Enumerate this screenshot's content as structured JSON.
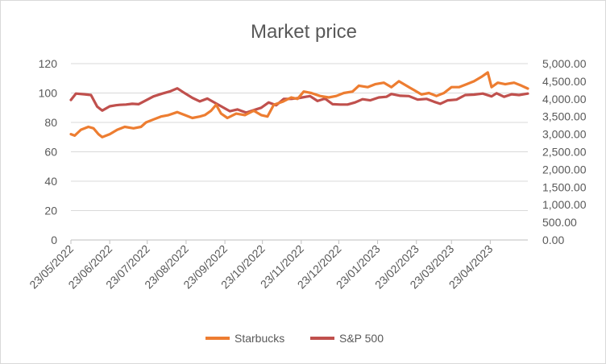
{
  "chart_data": {
    "type": "line",
    "title": "Market price",
    "xlabel": "",
    "ylabel": "",
    "y2label": "",
    "x_ticks": [
      "23/05/2022",
      "23/06/2022",
      "23/07/2022",
      "23/08/2022",
      "23/09/2022",
      "23/10/2022",
      "23/11/2022",
      "23/12/2022",
      "23/01/2023",
      "23/02/2023",
      "23/03/2023",
      "23/04/2023"
    ],
    "xlim": [
      "2022-05-23",
      "2023-05-23"
    ],
    "y_left": {
      "min": 0,
      "max": 120,
      "ticks": [
        "0",
        "20",
        "40",
        "60",
        "80",
        "100",
        "120"
      ]
    },
    "y_right": {
      "min": 0,
      "max": 5000,
      "ticks": [
        "0.00",
        "500.00",
        "1,000.00",
        "1,500.00",
        "2,000.00",
        "2,500.00",
        "3,000.00",
        "3,500.00",
        "4,000.00",
        "4,500.00",
        "5,000.00"
      ]
    },
    "grid": true,
    "legend_position": "bottom",
    "series": [
      {
        "name": "Starbucks",
        "axis": "left",
        "color": "#ed7d31",
        "points": [
          [
            "2022-05-23",
            72
          ],
          [
            "2022-05-26",
            71
          ],
          [
            "2022-05-31",
            75
          ],
          [
            "2022-06-06",
            77
          ],
          [
            "2022-06-10",
            76
          ],
          [
            "2022-06-14",
            72
          ],
          [
            "2022-06-17",
            70
          ],
          [
            "2022-06-23",
            72
          ],
          [
            "2022-06-29",
            75
          ],
          [
            "2022-07-05",
            77
          ],
          [
            "2022-07-12",
            76
          ],
          [
            "2022-07-18",
            77
          ],
          [
            "2022-07-22",
            80
          ],
          [
            "2022-07-28",
            82
          ],
          [
            "2022-08-03",
            84
          ],
          [
            "2022-08-09",
            85
          ],
          [
            "2022-08-16",
            87
          ],
          [
            "2022-08-22",
            85
          ],
          [
            "2022-08-28",
            83
          ],
          [
            "2022-09-03",
            84
          ],
          [
            "2022-09-07",
            85
          ],
          [
            "2022-09-12",
            88
          ],
          [
            "2022-09-16",
            92
          ],
          [
            "2022-09-20",
            86
          ],
          [
            "2022-09-25",
            83
          ],
          [
            "2022-10-02",
            86
          ],
          [
            "2022-10-09",
            85
          ],
          [
            "2022-10-16",
            88
          ],
          [
            "2022-10-22",
            85
          ],
          [
            "2022-10-27",
            84
          ],
          [
            "2022-11-01",
            92
          ],
          [
            "2022-11-08",
            94
          ],
          [
            "2022-11-15",
            97
          ],
          [
            "2022-11-20",
            96
          ],
          [
            "2022-11-25",
            101
          ],
          [
            "2022-12-01",
            100
          ],
          [
            "2022-12-08",
            98
          ],
          [
            "2022-12-15",
            97
          ],
          [
            "2022-12-21",
            98
          ],
          [
            "2022-12-27",
            100
          ],
          [
            "2023-01-03",
            101
          ],
          [
            "2023-01-08",
            105
          ],
          [
            "2023-01-15",
            104
          ],
          [
            "2023-01-21",
            106
          ],
          [
            "2023-01-28",
            107
          ],
          [
            "2023-02-03",
            104
          ],
          [
            "2023-02-09",
            108
          ],
          [
            "2023-02-15",
            105
          ],
          [
            "2023-02-21",
            102
          ],
          [
            "2023-02-27",
            99
          ],
          [
            "2023-03-05",
            100
          ],
          [
            "2023-03-11",
            98
          ],
          [
            "2023-03-17",
            100
          ],
          [
            "2023-03-23",
            104
          ],
          [
            "2023-03-29",
            104
          ],
          [
            "2023-04-04",
            106
          ],
          [
            "2023-04-10",
            108
          ],
          [
            "2023-04-16",
            111
          ],
          [
            "2023-04-21",
            114
          ],
          [
            "2023-04-24",
            104
          ],
          [
            "2023-04-29",
            107
          ],
          [
            "2023-05-05",
            106
          ],
          [
            "2023-05-12",
            107
          ],
          [
            "2023-05-18",
            105
          ],
          [
            "2023-05-23",
            103
          ]
        ]
      },
      {
        "name": "S&P 500",
        "axis": "right",
        "color": "#c0504d",
        "points": [
          [
            "2022-05-23",
            3970
          ],
          [
            "2022-05-27",
            4150
          ],
          [
            "2022-06-03",
            4130
          ],
          [
            "2022-06-08",
            4110
          ],
          [
            "2022-06-13",
            3780
          ],
          [
            "2022-06-17",
            3670
          ],
          [
            "2022-06-23",
            3790
          ],
          [
            "2022-06-28",
            3820
          ],
          [
            "2022-07-01",
            3830
          ],
          [
            "2022-07-06",
            3840
          ],
          [
            "2022-07-11",
            3860
          ],
          [
            "2022-07-16",
            3850
          ],
          [
            "2022-07-22",
            3960
          ],
          [
            "2022-07-28",
            4070
          ],
          [
            "2022-08-04",
            4150
          ],
          [
            "2022-08-10",
            4210
          ],
          [
            "2022-08-16",
            4300
          ],
          [
            "2022-08-22",
            4160
          ],
          [
            "2022-08-28",
            4030
          ],
          [
            "2022-09-03",
            3930
          ],
          [
            "2022-09-09",
            4010
          ],
          [
            "2022-09-13",
            3930
          ],
          [
            "2022-09-20",
            3790
          ],
          [
            "2022-09-27",
            3650
          ],
          [
            "2022-10-03",
            3700
          ],
          [
            "2022-10-10",
            3610
          ],
          [
            "2022-10-16",
            3680
          ],
          [
            "2022-10-22",
            3750
          ],
          [
            "2022-10-28",
            3900
          ],
          [
            "2022-11-03",
            3820
          ],
          [
            "2022-11-09",
            4000
          ],
          [
            "2022-11-15",
            4000
          ],
          [
            "2022-11-22",
            4030
          ],
          [
            "2022-11-30",
            4080
          ],
          [
            "2022-12-06",
            3940
          ],
          [
            "2022-12-12",
            4010
          ],
          [
            "2022-12-18",
            3850
          ],
          [
            "2022-12-24",
            3840
          ],
          [
            "2022-12-30",
            3840
          ],
          [
            "2023-01-05",
            3900
          ],
          [
            "2023-01-11",
            3990
          ],
          [
            "2023-01-17",
            3960
          ],
          [
            "2023-01-24",
            4040
          ],
          [
            "2023-01-30",
            4060
          ],
          [
            "2023-02-03",
            4140
          ],
          [
            "2023-02-10",
            4090
          ],
          [
            "2023-02-17",
            4080
          ],
          [
            "2023-02-24",
            3980
          ],
          [
            "2023-03-03",
            4000
          ],
          [
            "2023-03-09",
            3920
          ],
          [
            "2023-03-14",
            3860
          ],
          [
            "2023-03-20",
            3960
          ],
          [
            "2023-03-27",
            3980
          ],
          [
            "2023-04-03",
            4110
          ],
          [
            "2023-04-10",
            4120
          ],
          [
            "2023-04-17",
            4150
          ],
          [
            "2023-04-24",
            4070
          ],
          [
            "2023-04-28",
            4160
          ],
          [
            "2023-05-04",
            4060
          ],
          [
            "2023-05-10",
            4130
          ],
          [
            "2023-05-16",
            4110
          ],
          [
            "2023-05-23",
            4150
          ]
        ]
      }
    ]
  }
}
